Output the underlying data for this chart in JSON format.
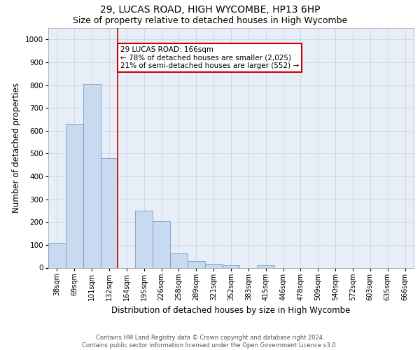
{
  "title_line1": "29, LUCAS ROAD, HIGH WYCOMBE, HP13 6HP",
  "title_line2": "Size of property relative to detached houses in High Wycombe",
  "xlabel": "Distribution of detached houses by size in High Wycombe",
  "ylabel": "Number of detached properties",
  "footer_line1": "Contains HM Land Registry data © Crown copyright and database right 2024.",
  "footer_line2": "Contains public sector information licensed under the Open Government Licence v3.0.",
  "categories": [
    "38sqm",
    "69sqm",
    "101sqm",
    "132sqm",
    "164sqm",
    "195sqm",
    "226sqm",
    "258sqm",
    "289sqm",
    "321sqm",
    "352sqm",
    "383sqm",
    "415sqm",
    "446sqm",
    "478sqm",
    "509sqm",
    "540sqm",
    "572sqm",
    "603sqm",
    "635sqm",
    "666sqm"
  ],
  "values": [
    110,
    630,
    805,
    480,
    0,
    250,
    205,
    62,
    28,
    18,
    10,
    0,
    10,
    0,
    0,
    0,
    0,
    0,
    0,
    0,
    0
  ],
  "bar_color": "#c8daf0",
  "bar_edge_color": "#6090c0",
  "vline_color": "#cc0000",
  "vline_x_index": 4,
  "annotation_text": "29 LUCAS ROAD: 166sqm\n← 78% of detached houses are smaller (2,025)\n21% of semi-detached houses are larger (552) →",
  "annotation_box_color": "#cc0000",
  "ylim": [
    0,
    1050
  ],
  "yticks": [
    0,
    100,
    200,
    300,
    400,
    500,
    600,
    700,
    800,
    900,
    1000
  ],
  "axes_bg": "#e8eef8",
  "grid_color": "#c8d4e8",
  "title_fontsize": 10,
  "subtitle_fontsize": 9,
  "axis_label_fontsize": 8.5,
  "tick_fontsize": 7,
  "footer_fontsize": 6,
  "annotation_fontsize": 7.5
}
